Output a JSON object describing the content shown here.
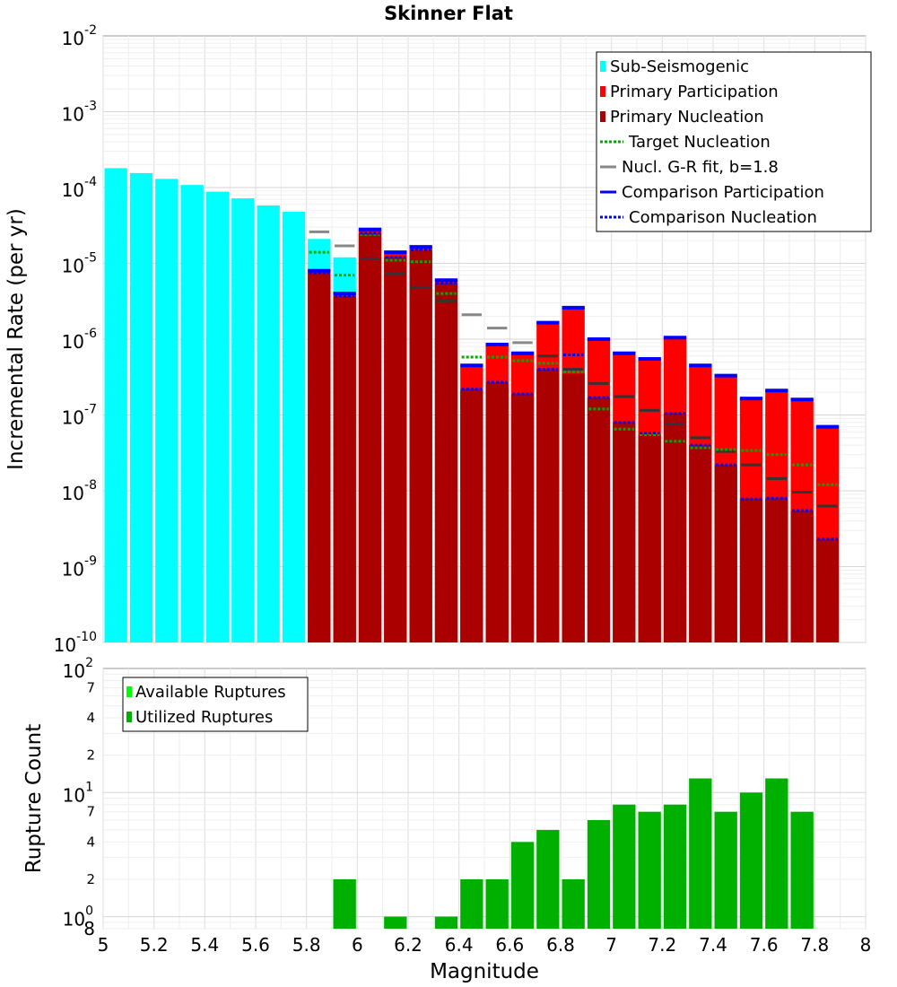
{
  "chart_data": [
    {
      "type": "bar",
      "title": "Skinner Flat",
      "xlabel": "",
      "ylabel": "Incremental Rate (per yr)",
      "yscale": "log",
      "ylim": [
        1e-10,
        0.01
      ],
      "xlim": [
        5,
        8
      ],
      "y_ticks": [
        {
          "base": "10",
          "exp": "-10"
        },
        {
          "base": "10",
          "exp": "-9"
        },
        {
          "base": "10",
          "exp": "-8"
        },
        {
          "base": "10",
          "exp": "-7"
        },
        {
          "base": "10",
          "exp": "-6"
        },
        {
          "base": "10",
          "exp": "-5"
        },
        {
          "base": "10",
          "exp": "-4"
        },
        {
          "base": "10",
          "exp": "-3"
        },
        {
          "base": "10",
          "exp": "-2"
        }
      ],
      "legend": [
        {
          "label": "Sub-Seismogenic",
          "style": "box",
          "color": "#00ffff"
        },
        {
          "label": "Primary Participation",
          "style": "box",
          "color": "#ff0000"
        },
        {
          "label": "Primary Nucleation",
          "style": "box",
          "color": "#aa0000"
        },
        {
          "label": "Target Nucleation",
          "style": "dotted",
          "color": "#00aa00"
        },
        {
          "label": "Nucl. G-R fit, b=1.8",
          "style": "solid",
          "color": "#888888"
        },
        {
          "label": "Comparison Participation",
          "style": "solid",
          "color": "#0000ff"
        },
        {
          "label": "Comparison Nucleation",
          "style": "dotted",
          "color": "#0000ff"
        }
      ],
      "colors": {
        "sub_seismogenic": "#00ffff",
        "primary_participation": "#ff0000",
        "primary_nucleation": "#aa0000",
        "target_nucleation": "#00aa00",
        "gr_fit": "#888888",
        "gr_fit_dark": "#333333",
        "comparison": "#0000ff"
      },
      "bar_width": 0.1,
      "sub_seismogenic": {
        "x": [
          5.05,
          5.15,
          5.25,
          5.35,
          5.45,
          5.55,
          5.65,
          5.75,
          5.85,
          5.95
        ],
        "values": [
          0.00018,
          0.000155,
          0.00013,
          0.000108,
          8.8e-05,
          7.2e-05,
          5.8e-05,
          4.8e-05,
          2.1e-05,
          1.2e-05
        ]
      },
      "x": [
        5.85,
        5.95,
        6.05,
        6.15,
        6.25,
        6.35,
        6.45,
        6.55,
        6.65,
        6.75,
        6.85,
        6.95,
        7.05,
        7.15,
        7.25,
        7.35,
        7.45,
        7.55,
        7.65,
        7.75,
        7.85
      ],
      "series": [
        {
          "name": "Primary Participation",
          "values": [
            8e-06,
            4e-06,
            2.8e-05,
            1.4e-05,
            1.65e-05,
            6e-06,
            4.5e-07,
            8.5e-07,
            6.5e-07,
            1.65e-06,
            2.6e-06,
            1e-06,
            6.5e-07,
            5.5e-07,
            1.05e-06,
            4.5e-07,
            3.3e-07,
            1.65e-07,
            2.1e-07,
            1.6e-07,
            7e-08
          ]
        },
        {
          "name": "Primary Nucleation",
          "values": [
            7.5e-06,
            3.7e-06,
            2.5e-05,
            1.2e-05,
            1.5e-05,
            5.5e-06,
            2.2e-07,
            2.7e-07,
            1.9e-07,
            4e-07,
            3.5e-07,
            1.7e-07,
            8e-08,
            5.5e-08,
            1.05e-07,
            4e-08,
            2.2e-08,
            7.8e-09,
            8e-09,
            5.5e-09,
            2.3e-09
          ]
        },
        {
          "name": "Target Nucleation",
          "values": [
            1.4e-05,
            7e-06,
            2.4e-05,
            1.1e-05,
            1.05e-05,
            4e-06,
            5.8e-07,
            5.8e-07,
            5.2e-07,
            4.8e-07,
            3.7e-07,
            1.2e-07,
            6.5e-08,
            5.5e-08,
            4.5e-08,
            3.7e-08,
            3.5e-08,
            3.4e-08,
            3e-08,
            2.2e-08,
            1.2e-08
          ]
        },
        {
          "name": "Nucl. G-R fit, b=1.8",
          "values": [
            2.6e-05,
            1.7e-05,
            1.15e-05,
            7.3e-06,
            4.8e-06,
            3.2e-06,
            2.1e-06,
            1.4e-06,
            9e-07,
            6e-07,
            4e-07,
            2.6e-07,
            1.75e-07,
            1.15e-07,
            7.6e-08,
            5e-08,
            3.3e-08,
            2.2e-08,
            1.45e-08,
            9.6e-09,
            6.3e-09
          ]
        },
        {
          "name": "Comparison Participation",
          "values": [
            8e-06,
            4e-06,
            2.8e-05,
            1.4e-05,
            1.65e-05,
            6e-06,
            4.5e-07,
            8.5e-07,
            6.5e-07,
            1.65e-06,
            2.6e-06,
            1e-06,
            6.5e-07,
            5.5e-07,
            1.05e-06,
            4.5e-07,
            3.3e-07,
            1.65e-07,
            2.1e-07,
            1.6e-07,
            7e-08
          ]
        },
        {
          "name": "Comparison Nucleation",
          "values": [
            7.5e-06,
            3.7e-06,
            2.5e-05,
            1.2e-05,
            1.5e-05,
            5.5e-06,
            2.2e-07,
            2.7e-07,
            1.9e-07,
            4e-07,
            6.2e-07,
            1.7e-07,
            8e-08,
            5.8e-08,
            1.05e-07,
            4e-08,
            2.2e-08,
            7.8e-09,
            8e-09,
            5.5e-09,
            2.3e-09
          ]
        }
      ]
    },
    {
      "type": "bar",
      "title": "",
      "xlabel": "Magnitude",
      "ylabel": "Rupture Count",
      "yscale": "log",
      "ylim": [
        0.8,
        100
      ],
      "xlim": [
        5,
        8
      ],
      "x_ticks": [
        "5",
        "5.2",
        "5.4",
        "5.6",
        "5.8",
        "6",
        "6.2",
        "6.4",
        "6.6",
        "6.8",
        "7",
        "7.2",
        "7.4",
        "7.6",
        "7.8",
        "8"
      ],
      "y_major_ticks": [
        {
          "value": 1,
          "base": "10",
          "exp": "0"
        },
        {
          "value": 10,
          "base": "10",
          "exp": "1"
        },
        {
          "value": 100,
          "base": "10",
          "exp": "2"
        }
      ],
      "y_minor_ticks": [
        {
          "value": 0.8,
          "label": "8"
        },
        {
          "value": 2,
          "label": "2"
        },
        {
          "value": 4,
          "label": "4"
        },
        {
          "value": 7,
          "label": "7"
        },
        {
          "value": 20,
          "label": "2"
        },
        {
          "value": 40,
          "label": "4"
        },
        {
          "value": 70,
          "label": "7"
        }
      ],
      "legend": [
        {
          "label": "Available Ruptures",
          "style": "box",
          "color": "#00ff00"
        },
        {
          "label": "Utilized Ruptures",
          "style": "box",
          "color": "#00b000"
        }
      ],
      "colors": {
        "available": "#00ff00",
        "utilized": "#00b000"
      },
      "bar_width": 0.1,
      "x": [
        5.95,
        6.15,
        6.35,
        6.45,
        6.55,
        6.65,
        6.75,
        6.85,
        6.95,
        7.05,
        7.15,
        7.25,
        7.35,
        7.45,
        7.55,
        7.65,
        7.75
      ],
      "series": [
        {
          "name": "Utilized Ruptures",
          "values": [
            2,
            1,
            1,
            2,
            2,
            4,
            5,
            2,
            6,
            8,
            7,
            8,
            13,
            7,
            10,
            13,
            7
          ]
        }
      ]
    }
  ]
}
